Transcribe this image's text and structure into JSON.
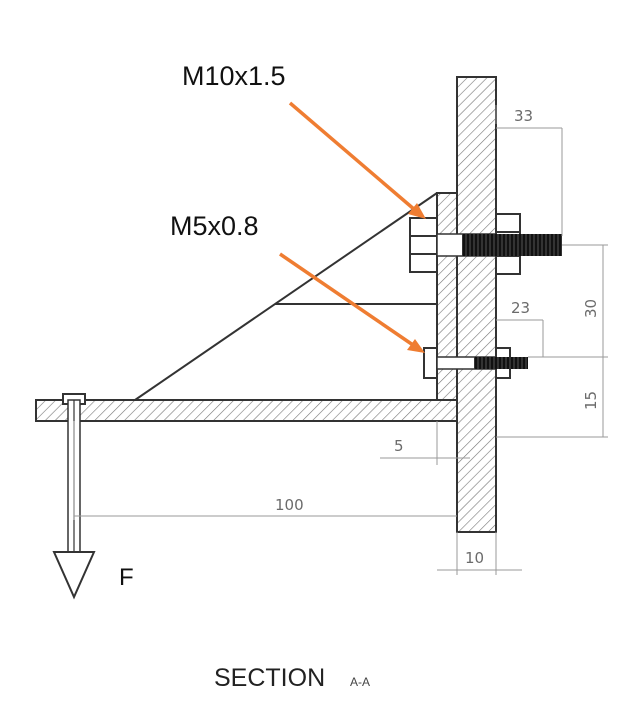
{
  "callouts": {
    "thread_large": "M10x1.5",
    "thread_small": "M5x0.8"
  },
  "dimensions": {
    "d33": "33",
    "d30": "30",
    "d23": "23",
    "d15": "15",
    "d5": "5",
    "d100": "100",
    "d10": "10"
  },
  "force_label": "F",
  "section": {
    "word": "SECTION",
    "suffix": "A-A"
  },
  "colors": {
    "leader": "#ef7d32",
    "outline": "#333333",
    "dimension": "#9a9a9a"
  }
}
